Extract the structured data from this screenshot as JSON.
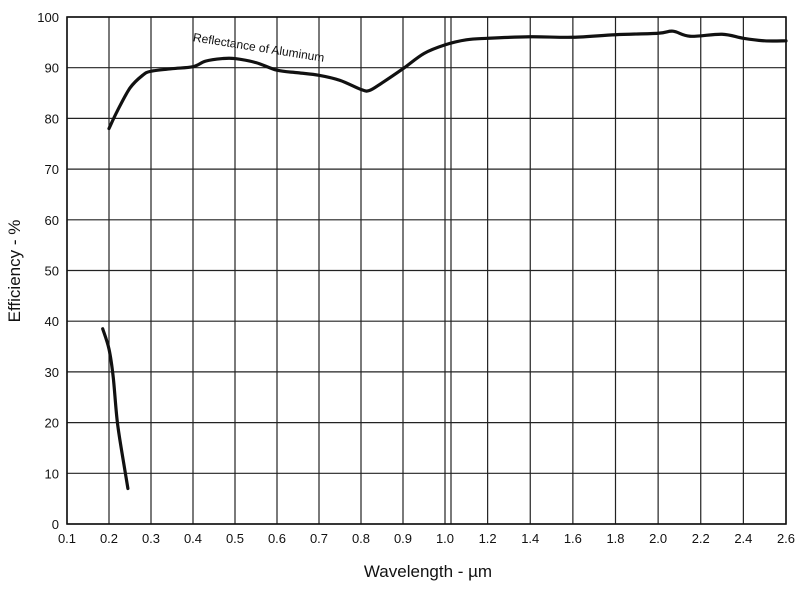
{
  "chart_data": {
    "type": "line",
    "title": "",
    "xlabel": "Wavelength - µm",
    "ylabel": "Efficiency - %",
    "grid": true,
    "xlim": [
      0.1,
      2.6
    ],
    "ylim": [
      0,
      100
    ],
    "x_axis_note": "non-uniform scale: 0.1 µm per division from 0.1 to 1.0, 0.2 µm per division from 1.0 to 2.6; double line at 1.0",
    "x_ticks": [
      {
        "value": 0.1,
        "label": "0.1"
      },
      {
        "value": 0.2,
        "label": "0.2"
      },
      {
        "value": 0.3,
        "label": "0.3"
      },
      {
        "value": 0.4,
        "label": "0.4"
      },
      {
        "value": 0.5,
        "label": "0.5"
      },
      {
        "value": 0.6,
        "label": "0.6"
      },
      {
        "value": 0.7,
        "label": "0.7"
      },
      {
        "value": 0.8,
        "label": "0.8"
      },
      {
        "value": 0.9,
        "label": "0.9"
      },
      {
        "value": 1.0,
        "label": "1.0"
      },
      {
        "value": 1.2,
        "label": "1.2"
      },
      {
        "value": 1.4,
        "label": "1.4"
      },
      {
        "value": 1.6,
        "label": "1.6"
      },
      {
        "value": 1.8,
        "label": "1.8"
      },
      {
        "value": 2.0,
        "label": "2.0"
      },
      {
        "value": 2.2,
        "label": "2.2"
      },
      {
        "value": 2.4,
        "label": "2.4"
      },
      {
        "value": 2.6,
        "label": "2.6"
      }
    ],
    "y_ticks": [
      {
        "value": 0,
        "label": "0"
      },
      {
        "value": 10,
        "label": "10"
      },
      {
        "value": 20,
        "label": "20"
      },
      {
        "value": 30,
        "label": "30"
      },
      {
        "value": 40,
        "label": "40"
      },
      {
        "value": 50,
        "label": "50"
      },
      {
        "value": 60,
        "label": "60"
      },
      {
        "value": 70,
        "label": "70"
      },
      {
        "value": 80,
        "label": "80"
      },
      {
        "value": 90,
        "label": "90"
      },
      {
        "value": 100,
        "label": "100"
      }
    ],
    "series": [
      {
        "name": "Reflectance of Aluminum",
        "color": "#111111",
        "points": [
          [
            0.2,
            78
          ],
          [
            0.22,
            81.5
          ],
          [
            0.25,
            86
          ],
          [
            0.28,
            88.5
          ],
          [
            0.3,
            89.3
          ],
          [
            0.35,
            89.8
          ],
          [
            0.4,
            90.2
          ],
          [
            0.43,
            91.3
          ],
          [
            0.47,
            91.8
          ],
          [
            0.5,
            91.8
          ],
          [
            0.55,
            91.0
          ],
          [
            0.6,
            89.5
          ],
          [
            0.65,
            89.0
          ],
          [
            0.7,
            88.5
          ],
          [
            0.75,
            87.5
          ],
          [
            0.8,
            85.7
          ],
          [
            0.82,
            85.5
          ],
          [
            0.85,
            87.0
          ],
          [
            0.9,
            89.8
          ],
          [
            0.95,
            92.8
          ],
          [
            1.0,
            94.5
          ],
          [
            1.1,
            95.5
          ],
          [
            1.2,
            95.8
          ],
          [
            1.4,
            96.1
          ],
          [
            1.6,
            96.0
          ],
          [
            1.8,
            96.5
          ],
          [
            2.0,
            96.8
          ],
          [
            2.07,
            97.2
          ],
          [
            2.15,
            96.2
          ],
          [
            2.3,
            96.6
          ],
          [
            2.4,
            95.8
          ],
          [
            2.5,
            95.3
          ],
          [
            2.6,
            95.3
          ]
        ]
      },
      {
        "color": "#111111",
        "points": [
          [
            0.185,
            38.5
          ],
          [
            0.2,
            34.5
          ],
          [
            0.21,
            29
          ],
          [
            0.22,
            20
          ],
          [
            0.235,
            12
          ],
          [
            0.245,
            7
          ]
        ]
      }
    ],
    "annotations": [
      {
        "text": "Reflectance of Aluminum",
        "x": 0.555,
        "y": 93.2,
        "rotate": 9
      }
    ]
  }
}
